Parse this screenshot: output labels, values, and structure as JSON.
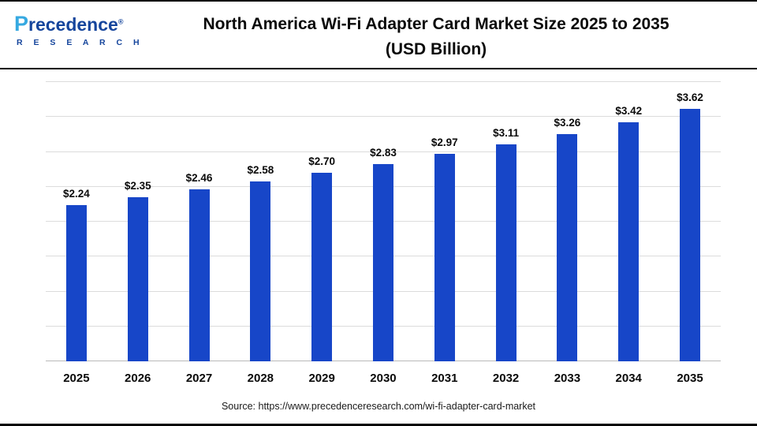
{
  "logo": {
    "initial": "P",
    "rest": "recedence",
    "registered": "®",
    "subtitle": "R E S E A R C H"
  },
  "title": {
    "line1": "North America Wi-Fi Adapter Card Market Size 2025 to 2035",
    "line2": "(USD Billion)"
  },
  "source": "Source: https://www.precedenceresearch.com/wi-fi-adapter-card-market",
  "chart_data": {
    "type": "bar",
    "title": "North America Wi-Fi Adapter Card Market Size 2025 to 2035 (USD Billion)",
    "categories": [
      "2025",
      "2026",
      "2027",
      "2028",
      "2029",
      "2030",
      "2031",
      "2032",
      "2033",
      "2034",
      "2035"
    ],
    "values": [
      2.24,
      2.35,
      2.46,
      2.58,
      2.7,
      2.83,
      2.97,
      3.11,
      3.26,
      3.42,
      3.62
    ],
    "labels": [
      "$2.24",
      "$2.35",
      "$2.46",
      "$2.58",
      "$2.70",
      "$2.83",
      "$2.97",
      "$3.11",
      "$3.26",
      "$3.42",
      "$3.62"
    ],
    "xlabel": "",
    "ylabel": "",
    "ylim": [
      0,
      4
    ],
    "grid_step": 0.5,
    "grid": true,
    "legend": "none",
    "bar_color": "#1746c8"
  }
}
